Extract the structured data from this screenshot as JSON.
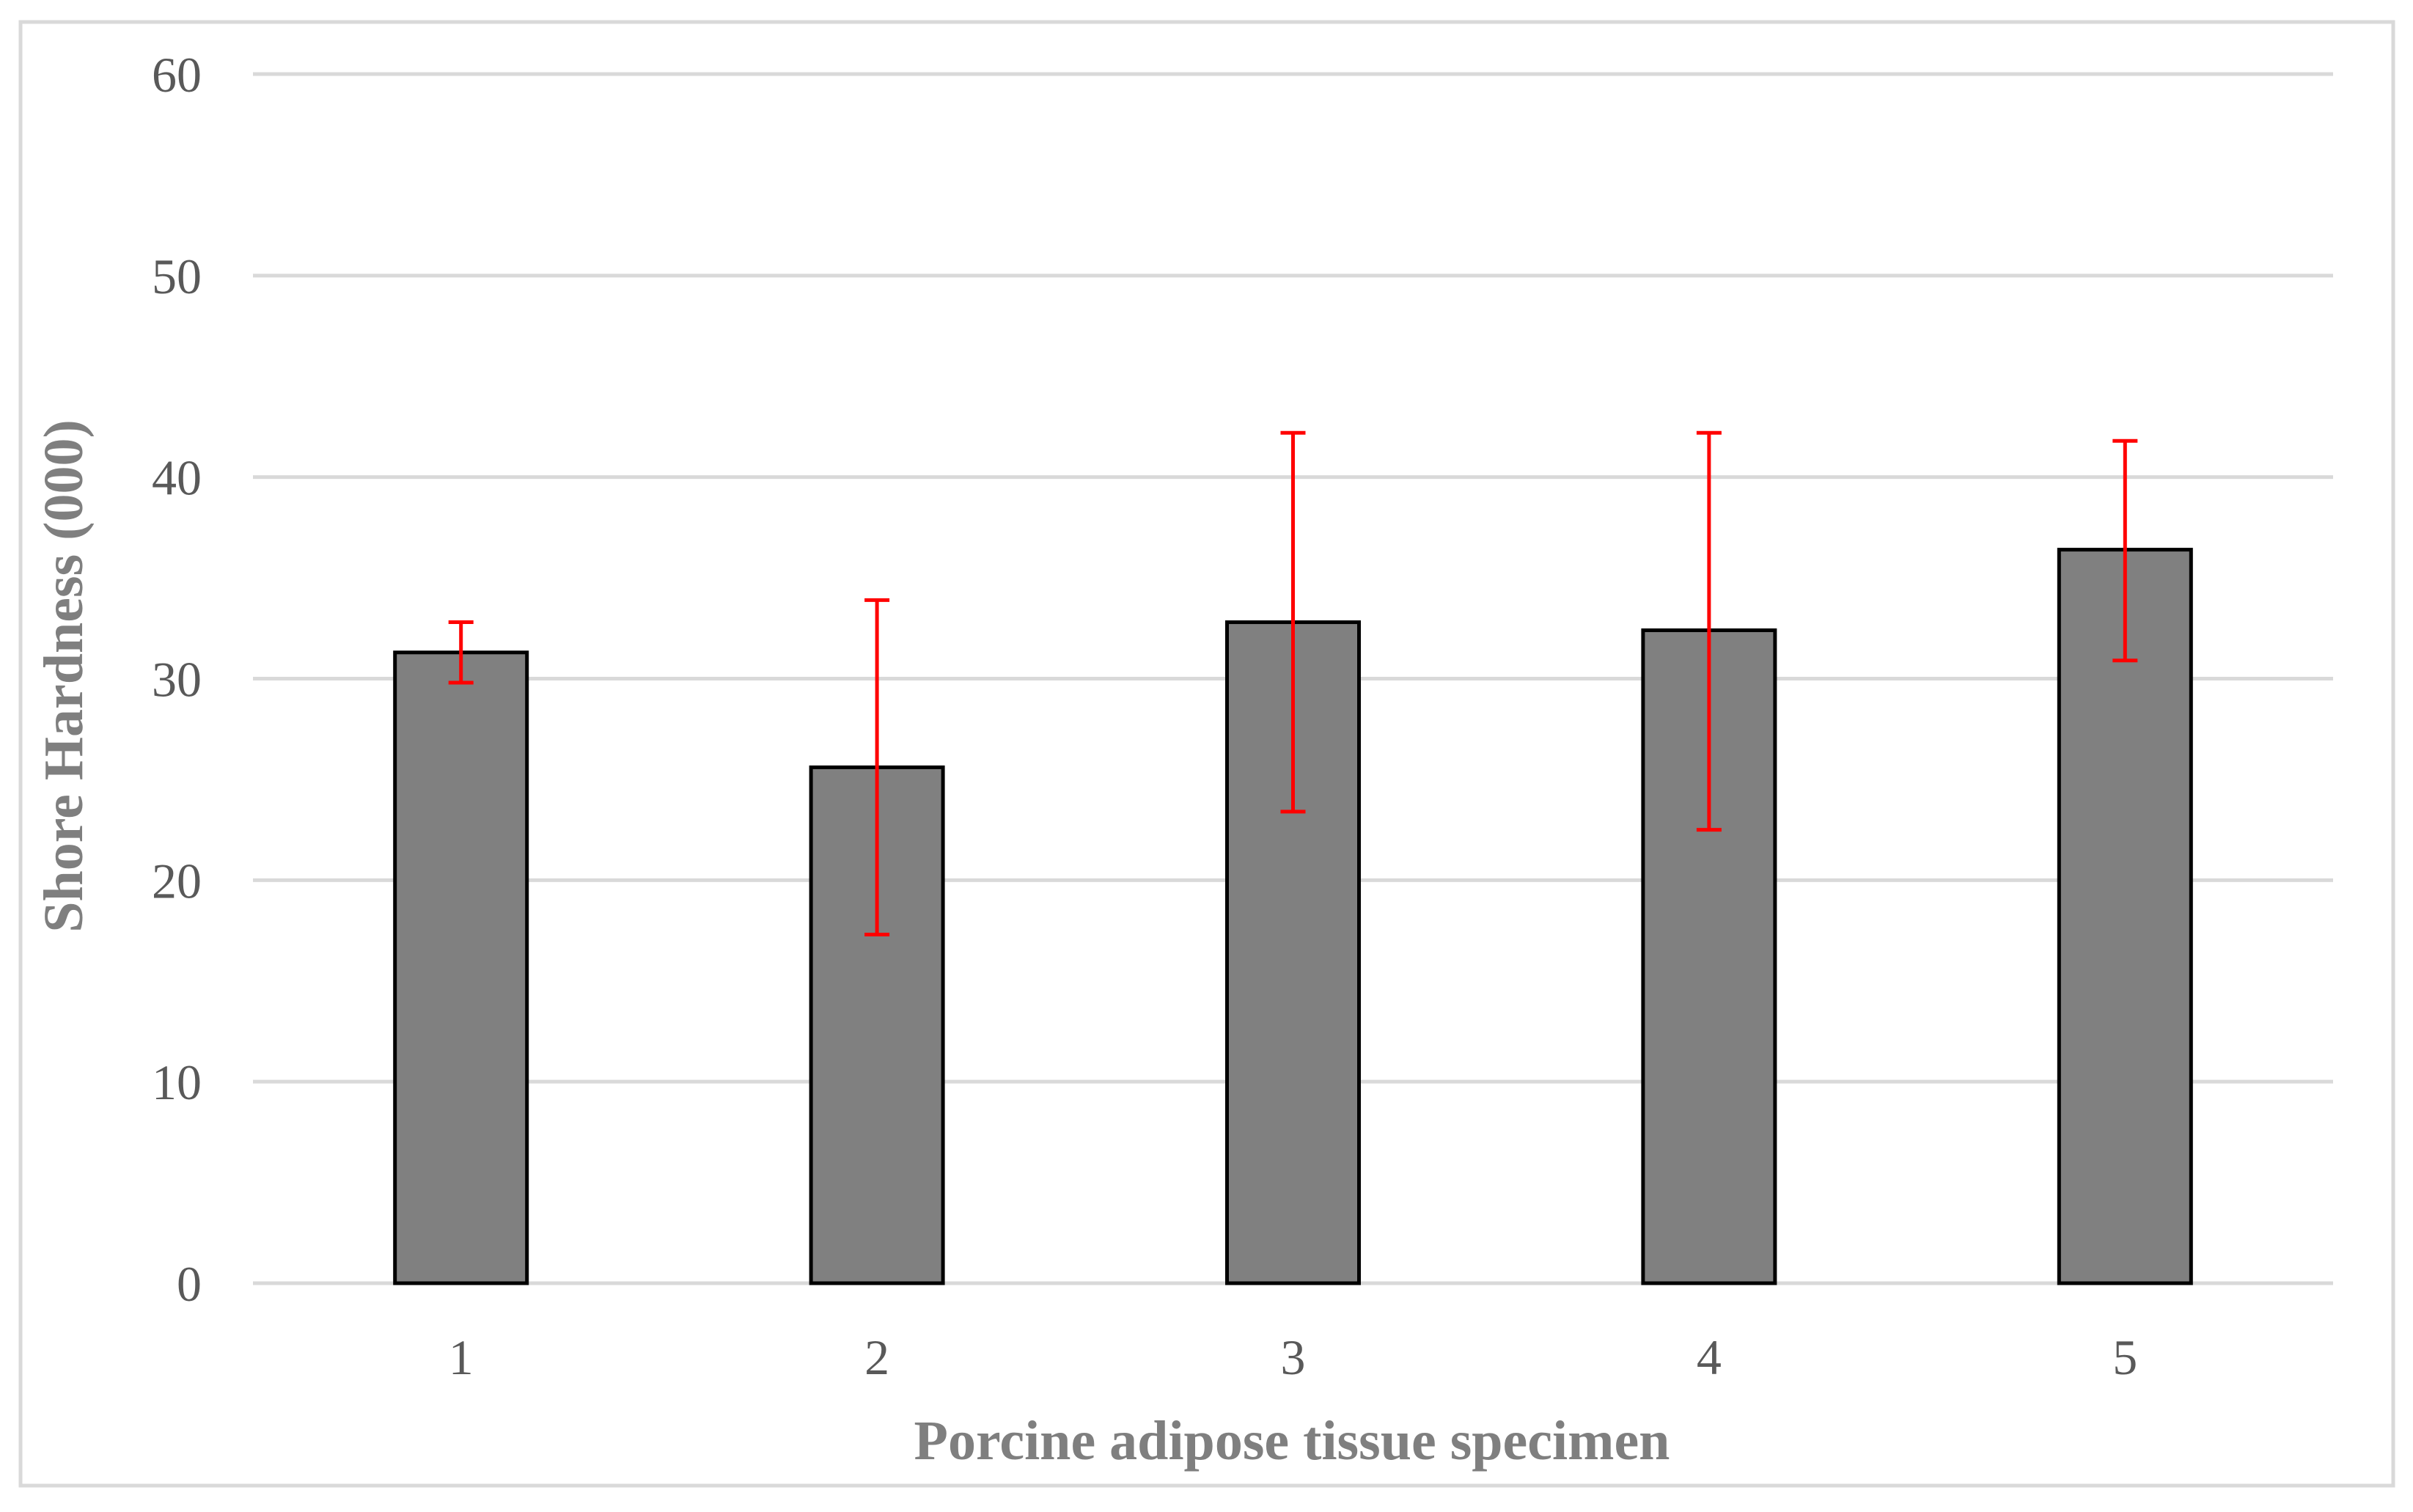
{
  "chart_data": {
    "type": "bar",
    "xlabel": "Porcine adipose tissue specimen",
    "ylabel": "Shore Hardness (000)",
    "ylim": [
      0,
      60
    ],
    "yticks": [
      "0",
      "10",
      "20",
      "30",
      "40",
      "50",
      "60"
    ],
    "categories": [
      "1",
      "2",
      "3",
      "4",
      "5"
    ],
    "values": [
      31.3,
      25.6,
      32.8,
      32.4,
      36.4
    ],
    "error_low": [
      29.8,
      17.3,
      23.4,
      22.5,
      30.9
    ],
    "error_high": [
      32.8,
      33.9,
      42.2,
      42.2,
      41.8
    ],
    "grid": true,
    "legend": "none",
    "colors": {
      "bar_fill": "#808080",
      "bar_stroke": "#000000",
      "error_bar": "#ff0000",
      "gridline": "#d9d9d9",
      "frame": "#d9d9d9"
    }
  }
}
